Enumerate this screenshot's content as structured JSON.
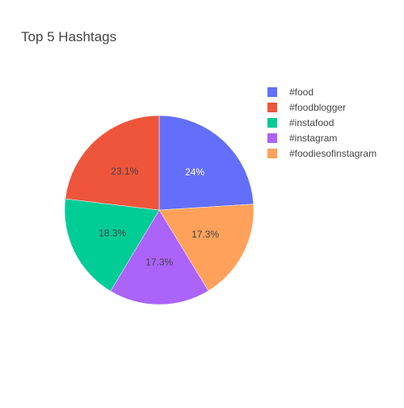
{
  "chart_data": {
    "type": "pie",
    "title": "Top 5 Hashtags",
    "labels": [
      "#food",
      "#foodblogger",
      "#instafood",
      "#instagram",
      "#foodiesofinstagram"
    ],
    "values": [
      24,
      23.1,
      18.3,
      17.3,
      17.3
    ],
    "value_labels": [
      "24%",
      "23.1%",
      "18.3%",
      "17.3%",
      "17.3%"
    ],
    "colors": [
      "#636efa",
      "#ef553b",
      "#00cc96",
      "#ab63fa",
      "#ffa15a"
    ],
    "label_colors": [
      "#ffffff",
      "#444444",
      "#444444",
      "#444444",
      "#444444"
    ],
    "legend_order": [
      0,
      1,
      2,
      3,
      4
    ],
    "slice_order": [
      0,
      4,
      3,
      2,
      1
    ],
    "legend_position": "top-right"
  }
}
